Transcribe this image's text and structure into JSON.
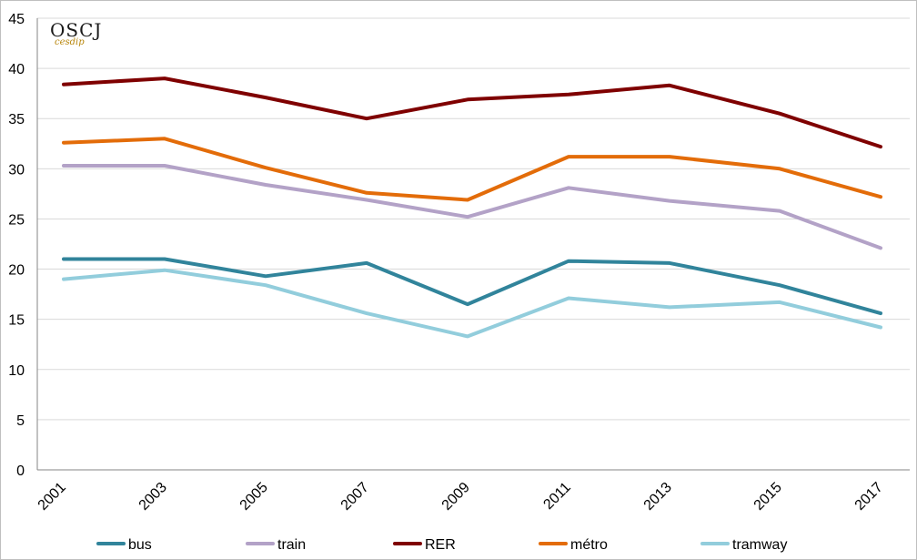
{
  "logo": {
    "main": "OSCJ",
    "sub": "cesdip"
  },
  "chart_data": {
    "type": "line",
    "title": "",
    "xlabel": "",
    "ylabel": "",
    "x": [
      "2001",
      "2003",
      "2005",
      "2007",
      "2009",
      "2011",
      "2013",
      "2015",
      "2017"
    ],
    "ylim": [
      0,
      45
    ],
    "yticks": [
      "0",
      "5",
      "10",
      "15",
      "20",
      "25",
      "30",
      "35",
      "40",
      "45"
    ],
    "grid": true,
    "legend": "bottom",
    "series": [
      {
        "name": "bus",
        "color": "#31849b",
        "values": [
          21.0,
          21.0,
          19.3,
          20.6,
          16.5,
          20.8,
          20.6,
          18.4,
          15.6
        ]
      },
      {
        "name": "train",
        "color": "#b3a2c7",
        "values": [
          30.3,
          30.3,
          28.4,
          26.9,
          25.2,
          28.1,
          26.8,
          25.8,
          22.1
        ]
      },
      {
        "name": "RER",
        "color": "#7f0000",
        "values": [
          38.4,
          39.0,
          37.1,
          35.0,
          36.9,
          37.4,
          38.3,
          35.5,
          32.2
        ]
      },
      {
        "name": "métro",
        "color": "#e36c09",
        "values": [
          32.6,
          33.0,
          30.1,
          27.6,
          26.9,
          31.2,
          31.2,
          30.0,
          27.2
        ]
      },
      {
        "name": "tramway",
        "color": "#92cddc",
        "values": [
          19.0,
          19.9,
          18.4,
          15.6,
          13.3,
          17.1,
          16.2,
          16.7,
          14.2
        ]
      }
    ]
  }
}
